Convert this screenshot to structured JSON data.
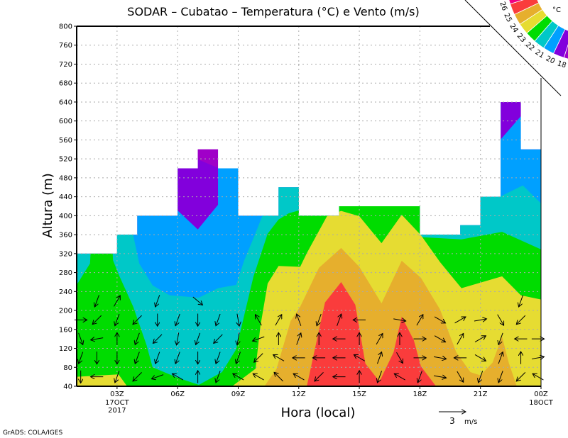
{
  "chart_data": {
    "type": "heatmap",
    "subtype": "filled-contour-with-wind-vectors",
    "title": "SODAR – Cubatao – Temperatura (°C) e Vento (m/s)",
    "xlabel": "Hora (local)",
    "ylabel": "Altura (m)",
    "xlim_hours": [
      1,
      24
    ],
    "ylim": [
      40,
      800
    ],
    "grid": true,
    "yticks": [
      40,
      80,
      120,
      160,
      200,
      240,
      280,
      320,
      360,
      400,
      440,
      480,
      520,
      560,
      600,
      640,
      680,
      720,
      760,
      800
    ],
    "xticks": [
      {
        "hour": 3,
        "label": "03Z",
        "sub1": "17OCT",
        "sub2": "2017"
      },
      {
        "hour": 6,
        "label": "06Z"
      },
      {
        "hour": 9,
        "label": "09Z"
      },
      {
        "hour": 12,
        "label": "12Z"
      },
      {
        "hour": 15,
        "label": "15Z"
      },
      {
        "hour": 18,
        "label": "18Z"
      },
      {
        "hour": 21,
        "label": "21Z"
      },
      {
        "hour": 24,
        "label": "00Z",
        "sub1": "18OCT"
      }
    ],
    "data_top_by_hour": [
      [
        1,
        3,
        320
      ],
      [
        3,
        4,
        360
      ],
      [
        4,
        6,
        400
      ],
      [
        6,
        7,
        500
      ],
      [
        7,
        8,
        540
      ],
      [
        8,
        9,
        500
      ],
      [
        9,
        11,
        400
      ],
      [
        11,
        12,
        460
      ],
      [
        12,
        14,
        400
      ],
      [
        14,
        18,
        420
      ],
      [
        18,
        20,
        360
      ],
      [
        20,
        21,
        380
      ],
      [
        21,
        22,
        440
      ],
      [
        22,
        23,
        640
      ],
      [
        23,
        24,
        540
      ]
    ],
    "colors": {
      "lt19": "#a000c8",
      "19_20": "#8200dc",
      "20_21": "#00a0ff",
      "21_22": "#00c8c8",
      "22_23": "#00dc00",
      "23_24": "#e6dc32",
      "24_25": "#e6af2d",
      "25_26": "#fa3c3c",
      "gt26": "#f00082"
    },
    "regions": [
      {
        "level": "base",
        "color": "#8200dc",
        "polys": [
          [
            [
              1,
              40
            ],
            [
              1,
              900
            ],
            [
              24,
              900
            ],
            [
              24,
              40
            ]
          ]
        ]
      },
      {
        "level": "lt19",
        "color": "#a000c8",
        "polys": [
          [
            [
              7,
              519
            ],
            [
              8,
              501
            ],
            [
              8,
              900
            ],
            [
              7,
              900
            ]
          ]
        ]
      },
      {
        "level": ">20",
        "color": "#00a0ff",
        "polys": [
          [
            [
              1,
              40
            ],
            [
              1,
              900
            ],
            [
              6,
              900
            ],
            [
              6,
              411
            ],
            [
              7,
              371
            ],
            [
              8,
              423
            ],
            [
              8,
              900
            ],
            [
              22,
              900
            ],
            [
              22,
              561
            ],
            [
              23,
              610
            ],
            [
              23,
              900
            ],
            [
              24,
              900
            ],
            [
              24,
              40
            ]
          ]
        ]
      },
      {
        "level": ">21",
        "color": "#00c8c8",
        "polys": [
          [
            [
              1,
              40
            ],
            [
              1,
              900
            ],
            [
              4,
              900
            ],
            [
              4,
              400
            ],
            [
              3.8,
              359
            ],
            [
              4.1,
              299
            ],
            [
              4.76,
              253
            ],
            [
              5.6,
              232
            ],
            [
              7.05,
              227
            ],
            [
              8,
              247
            ],
            [
              8.9,
              254
            ],
            [
              9.3,
              306
            ],
            [
              9.8,
              357
            ],
            [
              10.2,
              400
            ],
            [
              10.2,
              900
            ],
            [
              22,
              900
            ],
            [
              22,
              441
            ],
            [
              23.1,
              464
            ],
            [
              24,
              426
            ],
            [
              24,
              40
            ]
          ]
        ]
      },
      {
        "level": ">22",
        "color": "#00dc00",
        "polys": [
          [
            [
              1,
              40
            ],
            [
              1,
              254
            ],
            [
              1.66,
              299
            ],
            [
              1.7,
              330
            ],
            [
              2.77,
              330
            ],
            [
              2.8,
              306
            ],
            [
              3.07,
              277
            ],
            [
              3.8,
              208
            ],
            [
              4.46,
              127
            ],
            [
              4.76,
              80
            ],
            [
              6,
              58
            ],
            [
              7.05,
              43
            ],
            [
              8.2,
              70
            ],
            [
              8.9,
              118
            ],
            [
              9.4,
              208
            ],
            [
              9.76,
              272
            ],
            [
              10.46,
              362
            ],
            [
              11,
              392
            ],
            [
              11.5,
              405
            ],
            [
              12,
              411
            ],
            [
              12,
              900
            ],
            [
              18,
              900
            ],
            [
              18,
              355
            ],
            [
              20.06,
              350
            ],
            [
              22.07,
              366
            ],
            [
              24,
              329
            ],
            [
              24,
              40
            ]
          ]
        ]
      },
      {
        "level": ">23",
        "color": "#e6dc32",
        "polys": [
          [
            [
              1,
              40
            ],
            [
              1,
              60
            ],
            [
              3.07,
              65
            ],
            [
              3.5,
              40
            ]
          ],
          [
            [
              8.7,
              40
            ],
            [
              9.86,
              77
            ],
            [
              10.1,
              167
            ],
            [
              10.46,
              257
            ],
            [
              11,
              294
            ],
            [
              12.07,
              292
            ],
            [
              12.4,
              321
            ],
            [
              13.4,
              399
            ],
            [
              14.1,
              410
            ],
            [
              15,
              399
            ],
            [
              16.1,
              342
            ],
            [
              17.1,
              402
            ],
            [
              18.05,
              359
            ],
            [
              19,
              302
            ],
            [
              20.06,
              247
            ],
            [
              22.07,
              272
            ],
            [
              23,
              232
            ],
            [
              24,
              223
            ],
            [
              24,
              40
            ]
          ]
        ]
      },
      {
        "level": ">24",
        "color": "#e6af2d",
        "polys": [
          [
            [
              10.3,
              40
            ],
            [
              10.9,
              77
            ],
            [
              11.6,
              178
            ],
            [
              12.07,
              208
            ],
            [
              13,
              290
            ],
            [
              14.1,
              332
            ],
            [
              15,
              292
            ],
            [
              16.1,
              215
            ],
            [
              17.1,
              305
            ],
            [
              18.05,
              269
            ],
            [
              19,
              202
            ],
            [
              19.8,
              112
            ],
            [
              20.5,
              70
            ],
            [
              21,
              63
            ],
            [
              21.6,
              90
            ],
            [
              22.07,
              145
            ],
            [
              22.4,
              90
            ],
            [
              22.8,
              40
            ]
          ]
        ]
      },
      {
        "level": ">25",
        "color": "#fa3c3c",
        "polys": [
          [
            [
              12.4,
              40
            ],
            [
              13.3,
              217
            ],
            [
              14.1,
              260
            ],
            [
              14.8,
              212
            ],
            [
              15.3,
              88
            ],
            [
              16,
              50
            ],
            [
              16.7,
              112
            ],
            [
              17.1,
              187
            ],
            [
              17.7,
              137
            ],
            [
              18.05,
              82
            ],
            [
              18.8,
              40
            ]
          ]
        ]
      }
    ],
    "wind": {
      "heights": [
        60,
        100,
        140,
        180,
        220
      ],
      "speed_ms": 1.4,
      "columns": [
        {
          "hour": 1.2,
          "dirs": [
            180,
            200,
            160,
            90,
            null
          ]
        },
        {
          "hour": 2,
          "dirs": [
            270,
            180,
            260,
            225,
            200
          ]
        },
        {
          "hour": 3,
          "dirs": [
            200,
            180,
            0,
            200,
            30
          ]
        },
        {
          "hour": 4,
          "dirs": [
            225,
            200,
            200,
            225,
            null
          ]
        },
        {
          "hour": 5,
          "dirs": [
            250,
            200,
            225,
            180,
            200
          ]
        },
        {
          "hour": 6,
          "dirs": [
            300,
            200,
            190,
            200,
            null
          ]
        },
        {
          "hour": 7,
          "dirs": [
            0,
            180,
            200,
            180,
            130
          ]
        },
        {
          "hour": 8,
          "dirs": [
            200,
            200,
            225,
            200,
            null
          ]
        },
        {
          "hour": 9,
          "dirs": [
            300,
            200,
            190,
            170,
            null
          ]
        },
        {
          "hour": 10,
          "dirs": [
            300,
            225,
            250,
            330,
            null
          ]
        },
        {
          "hour": 11,
          "dirs": [
            315,
            300,
            0,
            30,
            null
          ]
        },
        {
          "hour": 12,
          "dirs": [
            300,
            270,
            20,
            340,
            null
          ]
        },
        {
          "hour": 13,
          "dirs": [
            225,
            270,
            0,
            200,
            null
          ]
        },
        {
          "hour": 14,
          "dirs": [
            270,
            270,
            270,
            20,
            null
          ]
        },
        {
          "hour": 15,
          "dirs": [
            0,
            300,
            0,
            270,
            null
          ]
        },
        {
          "hour": 16,
          "dirs": [
            200,
            20,
            30,
            null,
            null
          ]
        },
        {
          "hour": 17,
          "dirs": [
            300,
            150,
            0,
            100,
            null
          ]
        },
        {
          "hour": 18,
          "dirs": [
            200,
            90,
            90,
            30,
            null
          ]
        },
        {
          "hour": 19,
          "dirs": [
            100,
            100,
            120,
            120,
            null
          ]
        },
        {
          "hour": 20,
          "dirs": [
            150,
            270,
            30,
            60,
            null
          ]
        },
        {
          "hour": 21,
          "dirs": [
            200,
            120,
            60,
            80,
            null
          ]
        },
        {
          "hour": 22,
          "dirs": [
            200,
            20,
            200,
            150,
            null
          ]
        },
        {
          "hour": 23,
          "dirs": [
            225,
            0,
            270,
            225,
            200
          ]
        },
        {
          "hour": 24,
          "dirs": [
            300,
            80,
            90,
            null,
            null
          ]
        }
      ]
    },
    "vector_key": {
      "value": "3",
      "units": "m/s"
    },
    "colorbar": {
      "unit": "°C",
      "labels": [
        "26",
        "25",
        "24",
        "23",
        "22",
        "21",
        "20",
        "18"
      ],
      "colors": [
        "#f00082",
        "#fa3c3c",
        "#e6af2d",
        "#e6dc32",
        "#00dc00",
        "#00c8c8",
        "#00a0ff",
        "#8200dc",
        "#a000c8"
      ]
    },
    "credit": "GrADS: COLA/IGES"
  }
}
